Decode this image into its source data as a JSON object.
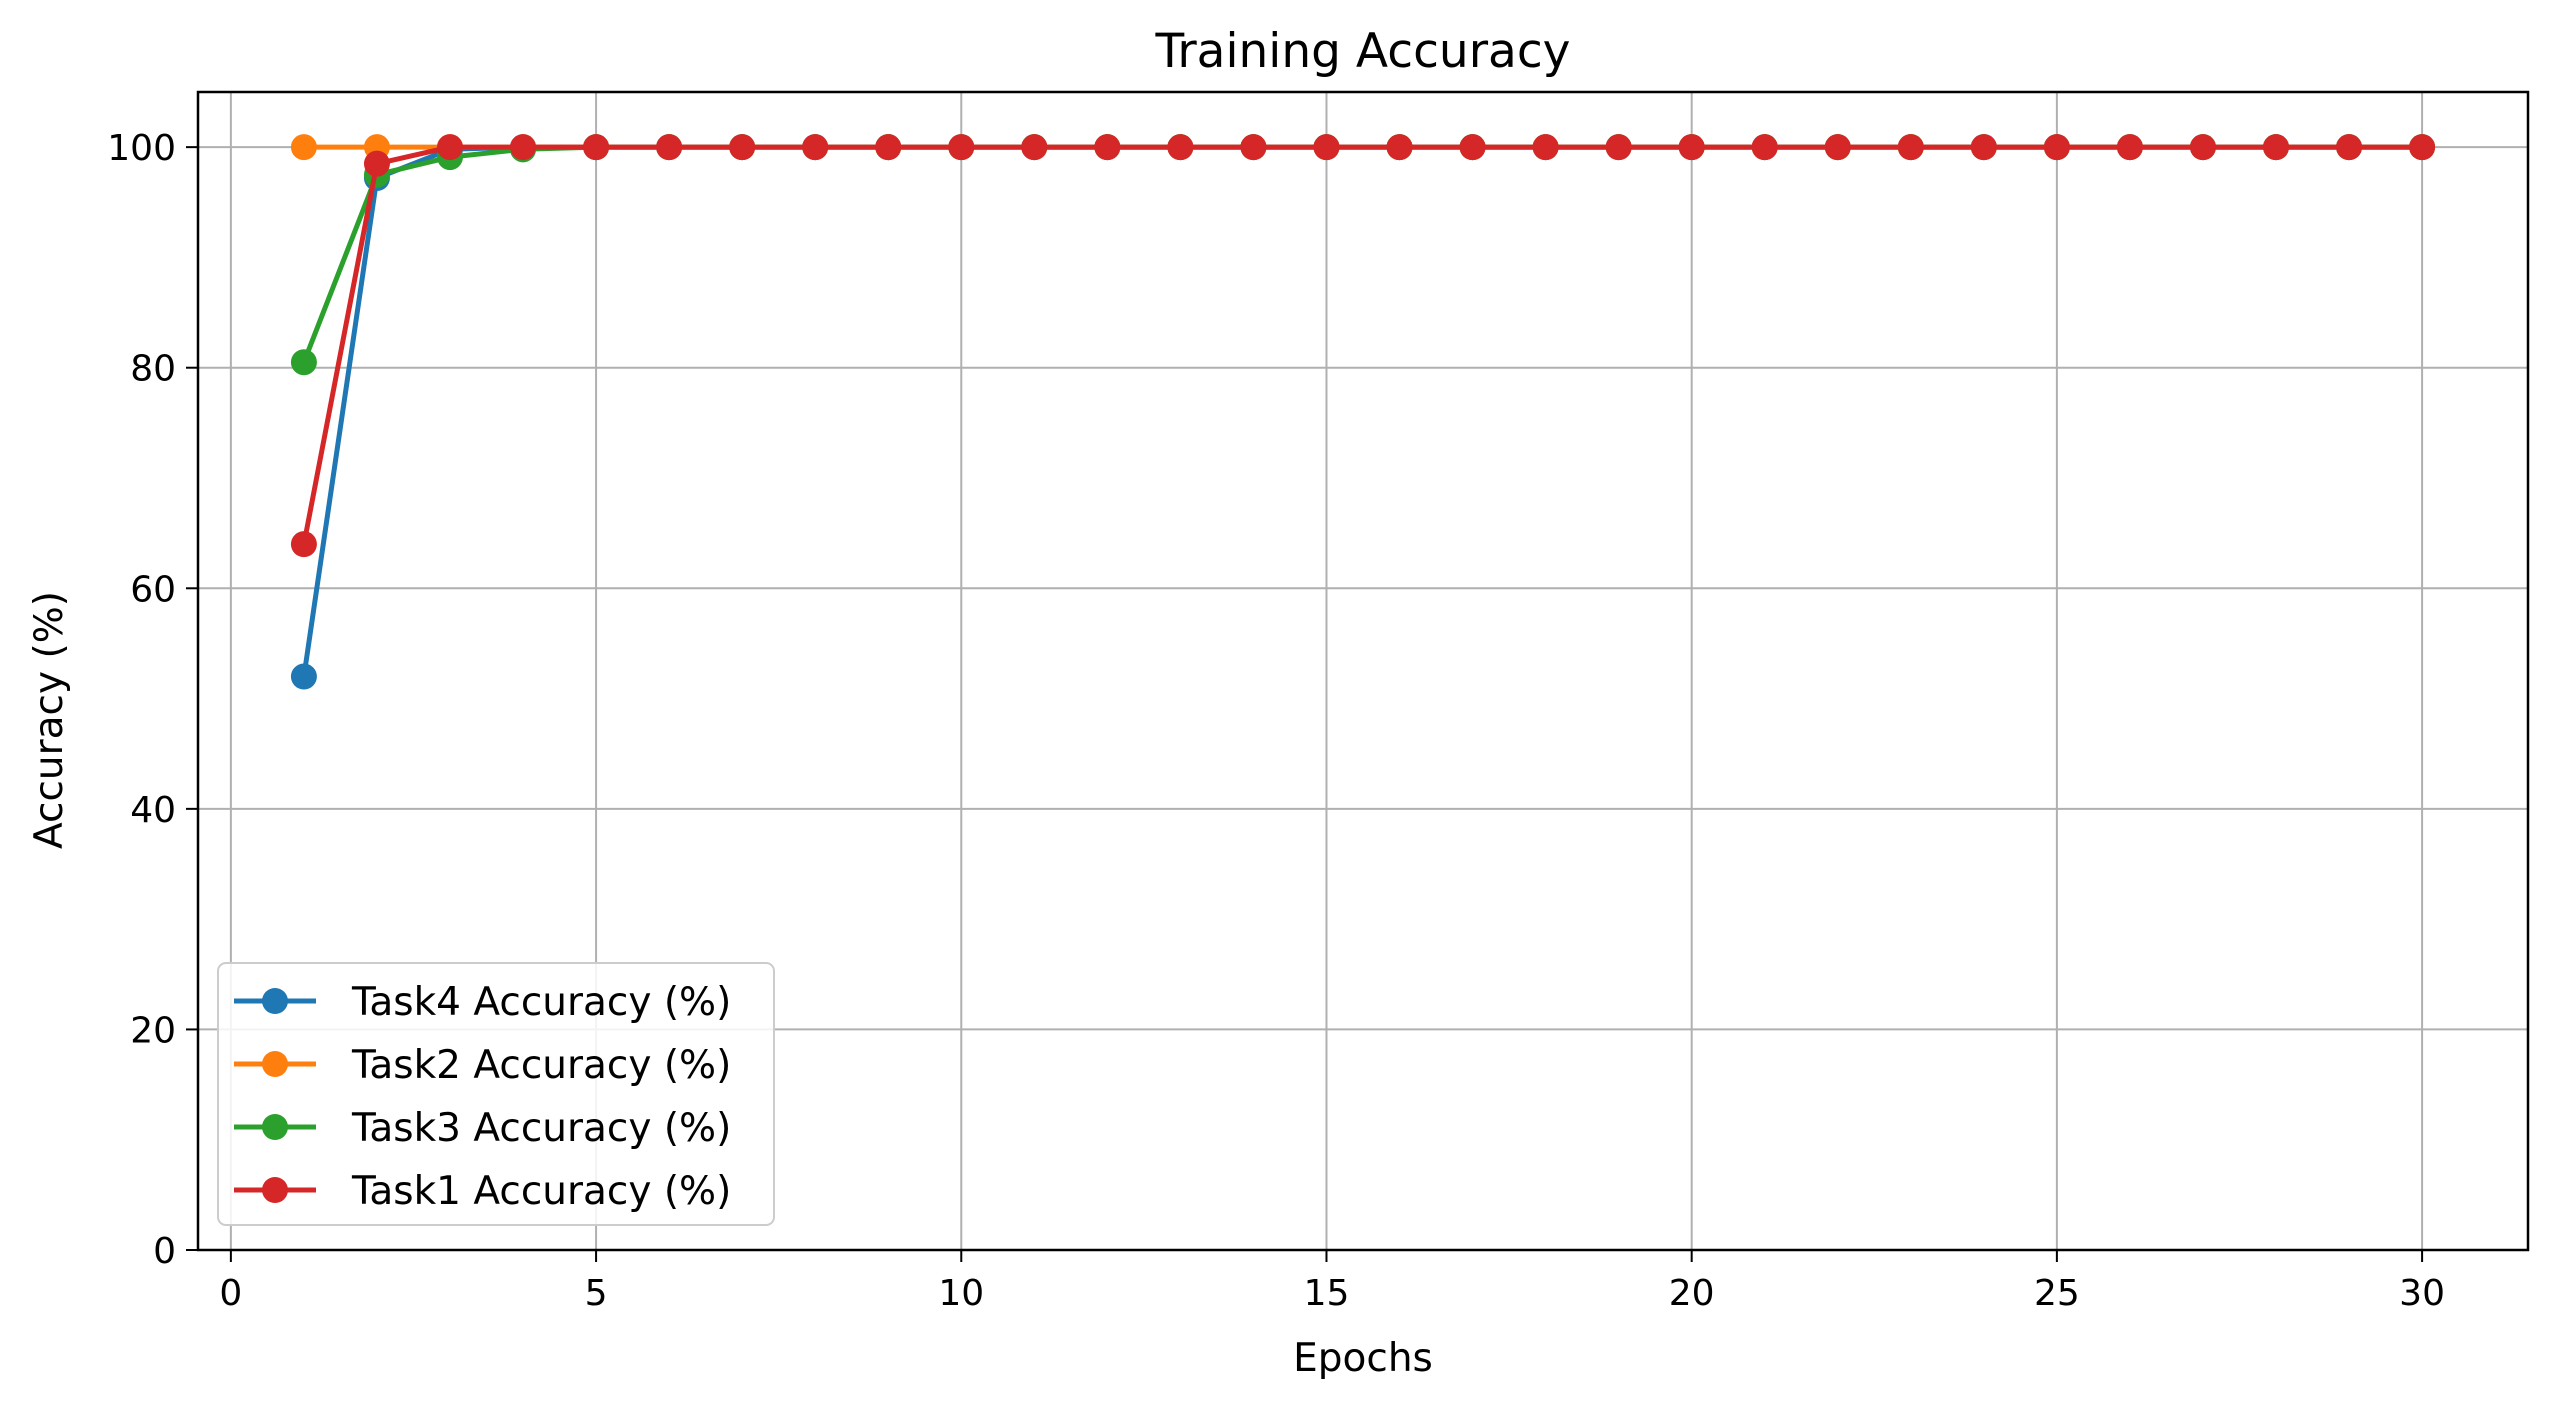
{
  "chart_data": {
    "type": "line",
    "title": "Training  Accuracy",
    "xlabel": "Epochs",
    "ylabel": "Accuracy (%)",
    "xlim": [
      -0.45,
      31.45
    ],
    "ylim": [
      0,
      105
    ],
    "x_ticks": [
      0,
      5,
      10,
      15,
      20,
      25,
      30
    ],
    "y_ticks": [
      0,
      20,
      40,
      60,
      80,
      100
    ],
    "grid": true,
    "legend_position": "lower-left",
    "markers": "circle",
    "x": [
      1,
      2,
      3,
      4,
      5,
      6,
      7,
      8,
      9,
      10,
      11,
      12,
      13,
      14,
      15,
      16,
      17,
      18,
      19,
      20,
      21,
      22,
      23,
      24,
      25,
      26,
      27,
      28,
      29,
      30
    ],
    "series": [
      {
        "name": "Task4 Accuracy (%)",
        "color": "#1f77b4",
        "values": [
          52.0,
          97.2,
          99.8,
          100,
          100,
          100,
          100,
          100,
          100,
          100,
          100,
          100,
          100,
          100,
          100,
          100,
          100,
          100,
          100,
          100,
          100,
          100,
          100,
          100,
          100,
          100,
          100,
          100,
          100,
          100
        ]
      },
      {
        "name": "Task2 Accuracy (%)",
        "color": "#ff7f0e",
        "values": [
          100,
          100,
          100,
          100,
          100,
          100,
          100,
          100,
          100,
          100,
          100,
          100,
          100,
          100,
          100,
          100,
          100,
          100,
          100,
          100,
          100,
          100,
          100,
          100,
          100,
          100,
          100,
          100,
          100,
          100
        ]
      },
      {
        "name": "Task3 Accuracy (%)",
        "color": "#2ca02c",
        "values": [
          80.5,
          97.5,
          99.1,
          99.8,
          100,
          100,
          100,
          100,
          100,
          100,
          100,
          100,
          100,
          100,
          100,
          100,
          100,
          100,
          100,
          100,
          100,
          100,
          100,
          100,
          100,
          100,
          100,
          100,
          100,
          100
        ]
      },
      {
        "name": "Task1 Accuracy (%)",
        "color": "#d62728",
        "values": [
          64.0,
          98.5,
          100,
          100,
          100,
          100,
          100,
          100,
          100,
          100,
          100,
          100,
          100,
          100,
          100,
          100,
          100,
          100,
          100,
          100,
          100,
          100,
          100,
          100,
          100,
          100,
          100,
          100,
          100,
          100
        ]
      }
    ]
  }
}
